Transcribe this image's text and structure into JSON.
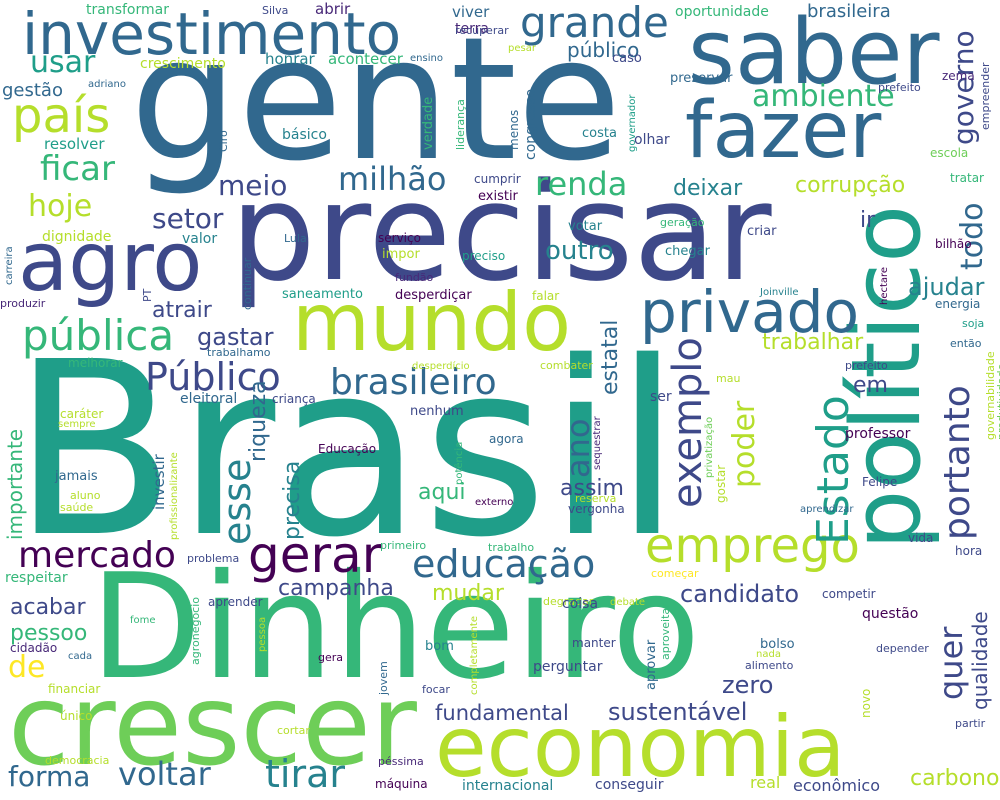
{
  "palette": {
    "background": "#ffffff",
    "yellow": "#fde725",
    "lime": "#b5de2b",
    "green": "#6ece58",
    "teal_green": "#35b779",
    "teal": "#1f9e89",
    "cyan": "#26828e",
    "blue": "#31688e",
    "indigo": "#3e4989",
    "violet": "#482878",
    "purple": "#440154"
  },
  "words": [
    {
      "text": "Brasil",
      "color": "#1f9e89"
    },
    {
      "text": "gente",
      "color": "#31688e"
    },
    {
      "text": "Dinheiro",
      "color": "#35b779"
    },
    {
      "text": "precisar",
      "color": "#3e4989"
    },
    {
      "text": "crescer",
      "color": "#6ece58"
    },
    {
      "text": "economia",
      "color": "#b5de2b"
    },
    {
      "text": "político",
      "color": "#1f9e89"
    },
    {
      "text": "saber",
      "color": "#31688e"
    },
    {
      "text": "fazer",
      "color": "#31688e"
    },
    {
      "text": "mundo",
      "color": "#b5de2b"
    },
    {
      "text": "agro",
      "color": "#3e4989"
    },
    {
      "text": "investimento",
      "color": "#31688e"
    },
    {
      "text": "privado",
      "color": "#31688e"
    },
    {
      "text": "emprego",
      "color": "#b5de2b"
    },
    {
      "text": "gerar",
      "color": "#440154"
    },
    {
      "text": "país",
      "color": "#b5de2b"
    },
    {
      "text": "pública",
      "color": "#35b779"
    },
    {
      "text": "Público",
      "color": "#3e4989"
    },
    {
      "text": "brasileiro",
      "color": "#31688e"
    },
    {
      "text": "educação",
      "color": "#31688e"
    },
    {
      "text": "mercado",
      "color": "#440154"
    },
    {
      "text": "grande",
      "color": "#31688e"
    },
    {
      "text": "Estado",
      "color": "#1f9e89"
    },
    {
      "text": "exemplo",
      "color": "#3e4989"
    },
    {
      "text": "esse",
      "color": "#26828e"
    },
    {
      "text": "portanto",
      "color": "#3e4989"
    },
    {
      "text": "quer",
      "color": "#3e4989"
    },
    {
      "text": "voltar",
      "color": "#31688e"
    },
    {
      "text": "tirar",
      "color": "#26828e"
    },
    {
      "text": "ficar",
      "color": "#35b779"
    },
    {
      "text": "hoje",
      "color": "#b5de2b"
    },
    {
      "text": "renda",
      "color": "#35b779"
    },
    {
      "text": "milhão",
      "color": "#31688e"
    },
    {
      "text": "meio",
      "color": "#3e4989"
    },
    {
      "text": "ambiente",
      "color": "#35b779"
    },
    {
      "text": "usar",
      "color": "#1f9e89"
    },
    {
      "text": "setor",
      "color": "#3e4989"
    },
    {
      "text": "deixar",
      "color": "#26828e"
    },
    {
      "text": "corrupção",
      "color": "#b5de2b"
    },
    {
      "text": "governo",
      "color": "#3e4989"
    },
    {
      "text": "todo",
      "color": "#31688e"
    },
    {
      "text": "ano",
      "color": "#31688e"
    },
    {
      "text": "poder",
      "color": "#b5de2b"
    },
    {
      "text": "forma",
      "color": "#31688e"
    },
    {
      "text": "de",
      "color": "#fde725"
    },
    {
      "text": "ajudar",
      "color": "#26828e"
    },
    {
      "text": "trabalhar",
      "color": "#b5de2b"
    },
    {
      "text": "estatal",
      "color": "#31688e"
    },
    {
      "text": "riqueza",
      "color": "#31688e"
    },
    {
      "text": "precisa",
      "color": "#26828e"
    },
    {
      "text": "outro",
      "color": "#26828e"
    },
    {
      "text": "fundamental",
      "color": "#3e4989"
    },
    {
      "text": "sustentável",
      "color": "#3e4989"
    },
    {
      "text": "candidato",
      "color": "#3e4989"
    },
    {
      "text": "zero",
      "color": "#3e4989"
    },
    {
      "text": "qualidade",
      "color": "#3e4989"
    },
    {
      "text": "carbono",
      "color": "#b5de2b"
    },
    {
      "text": "campanha",
      "color": "#3e4989"
    },
    {
      "text": "mudar",
      "color": "#b5de2b"
    },
    {
      "text": "aqui",
      "color": "#35b779"
    },
    {
      "text": "assim",
      "color": "#3e4989"
    },
    {
      "text": "gastar",
      "color": "#3e4989"
    },
    {
      "text": "atrair",
      "color": "#3e4989"
    },
    {
      "text": "acabar",
      "color": "#3e4989"
    },
    {
      "text": "pessoo",
      "color": "#35b779"
    },
    {
      "text": "gestão",
      "color": "#31688e"
    },
    {
      "text": "brasileira",
      "color": "#31688e"
    },
    {
      "text": "público",
      "color": "#31688e"
    },
    {
      "text": "oportunidade",
      "color": "#35b779"
    },
    {
      "text": "viver",
      "color": "#31688e"
    },
    {
      "text": "abrir",
      "color": "#482878"
    },
    {
      "text": "transformar",
      "color": "#35b779"
    },
    {
      "text": "Silva",
      "color": "#3e4989"
    },
    {
      "text": "terra",
      "color": "#482878"
    },
    {
      "text": "recuperar",
      "color": "#3e4989"
    },
    {
      "text": "crescimento",
      "color": "#b5de2b"
    },
    {
      "text": "honrar",
      "color": "#26828e"
    },
    {
      "text": "acontecer",
      "color": "#35b779"
    },
    {
      "text": "ensino",
      "color": "#31688e"
    },
    {
      "text": "pesar",
      "color": "#b5de2b"
    },
    {
      "text": "caso",
      "color": "#3e4989"
    },
    {
      "text": "preservar",
      "color": "#31688e"
    },
    {
      "text": "zema",
      "color": "#482878"
    },
    {
      "text": "empreender",
      "color": "#3e4989"
    },
    {
      "text": "prefeito",
      "color": "#3e4989"
    },
    {
      "text": "adriano",
      "color": "#31688e"
    },
    {
      "text": "básico",
      "color": "#26828e"
    },
    {
      "text": "resolver",
      "color": "#1f9e89"
    },
    {
      "text": "Ciro",
      "color": "#31688e"
    },
    {
      "text": "verdade",
      "color": "#35b779"
    },
    {
      "text": "liderança",
      "color": "#35b779"
    },
    {
      "text": "menos",
      "color": "#31688e"
    },
    {
      "text": "congresso",
      "color": "#31688e"
    },
    {
      "text": "costa",
      "color": "#26828e"
    },
    {
      "text": "olhar",
      "color": "#3e4989"
    },
    {
      "text": "governador",
      "color": "#1f9e89"
    },
    {
      "text": "escola",
      "color": "#6ece58"
    },
    {
      "text": "tratar",
      "color": "#35b779"
    },
    {
      "text": "cumprir",
      "color": "#3e4989"
    },
    {
      "text": "existir",
      "color": "#440154"
    },
    {
      "text": "dignidade",
      "color": "#b5de2b"
    },
    {
      "text": "valor",
      "color": "#26828e"
    },
    {
      "text": "serviço",
      "color": "#440154"
    },
    {
      "text": "votar",
      "color": "#26828e"
    },
    {
      "text": "geração",
      "color": "#35b779"
    },
    {
      "text": "criar",
      "color": "#3e4989"
    },
    {
      "text": "Lula",
      "color": "#31688e"
    },
    {
      "text": "impor",
      "color": "#b5de2b"
    },
    {
      "text": "preciso",
      "color": "#1f9e89"
    },
    {
      "text": "chegar",
      "color": "#26828e"
    },
    {
      "text": "ir",
      "color": "#3e4989"
    },
    {
      "text": "bilhão",
      "color": "#440154"
    },
    {
      "text": "hectare",
      "color": "#440154"
    },
    {
      "text": "carreira",
      "color": "#31688e"
    },
    {
      "text": "fundão",
      "color": "#482878"
    },
    {
      "text": "produzir",
      "color": "#482878"
    },
    {
      "text": "PT",
      "color": "#3e4989"
    },
    {
      "text": "continuar",
      "color": "#31688e"
    },
    {
      "text": "saneamento",
      "color": "#1f9e89"
    },
    {
      "text": "desperdiçar",
      "color": "#440154"
    },
    {
      "text": "falar",
      "color": "#b5de2b"
    },
    {
      "text": "Joinville",
      "color": "#26828e"
    },
    {
      "text": "energia",
      "color": "#31688e"
    },
    {
      "text": "soja",
      "color": "#1f9e89"
    },
    {
      "text": "trabalhamo",
      "color": "#31688e"
    },
    {
      "text": "então",
      "color": "#31688e"
    },
    {
      "text": "melhorar",
      "color": "#35b779"
    },
    {
      "text": "desperdício",
      "color": "#b5de2b"
    },
    {
      "text": "combater",
      "color": "#b5de2b"
    },
    {
      "text": "prefeito",
      "color": "#3e4989"
    },
    {
      "text": "mau",
      "color": "#b5de2b"
    },
    {
      "text": "em",
      "color": "#3e4989"
    },
    {
      "text": "eleitoral",
      "color": "#31688e"
    },
    {
      "text": "criança",
      "color": "#3e4989"
    },
    {
      "text": "caráter",
      "color": "#b5de2b"
    },
    {
      "text": "sempre",
      "color": "#b5de2b"
    },
    {
      "text": "nenhum",
      "color": "#3e4989"
    },
    {
      "text": "ser",
      "color": "#3e4989"
    },
    {
      "text": "produtividade",
      "color": "#6ece58"
    },
    {
      "text": "governabilidade",
      "color": "#b5de2b"
    },
    {
      "text": "professor",
      "color": "#440154"
    },
    {
      "text": "importante",
      "color": "#35b779"
    },
    {
      "text": "potência",
      "color": "#35b779"
    },
    {
      "text": "Educação",
      "color": "#440154"
    },
    {
      "text": "sequestrar",
      "color": "#482878"
    },
    {
      "text": "agora",
      "color": "#31688e"
    },
    {
      "text": "privatização",
      "color": "#6ece58"
    },
    {
      "text": "jamais",
      "color": "#31688e"
    },
    {
      "text": "investir",
      "color": "#31688e"
    },
    {
      "text": "reserva",
      "color": "#b5de2b"
    },
    {
      "text": "gostar",
      "color": "#b5de2b"
    },
    {
      "text": "Felipe",
      "color": "#3e4989"
    },
    {
      "text": "aluno",
      "color": "#b5de2b"
    },
    {
      "text": "saúde",
      "color": "#b5de2b"
    },
    {
      "text": "profissionalizante",
      "color": "#b5de2b"
    },
    {
      "text": "externo",
      "color": "#440154"
    },
    {
      "text": "vergonha",
      "color": "#3e4989"
    },
    {
      "text": "aprendizar",
      "color": "#31688e"
    },
    {
      "text": "primeiro",
      "color": "#35b779"
    },
    {
      "text": "trabalho",
      "color": "#35b779"
    },
    {
      "text": "vida",
      "color": "#3e4989"
    },
    {
      "text": "hora",
      "color": "#3e4989"
    },
    {
      "text": "problema",
      "color": "#3e4989"
    },
    {
      "text": "respeitar",
      "color": "#35b779"
    },
    {
      "text": "começar",
      "color": "#fde725"
    },
    {
      "text": "competir",
      "color": "#3e4989"
    },
    {
      "text": "agronegócio",
      "color": "#35b779"
    },
    {
      "text": "aprender",
      "color": "#3e4989"
    },
    {
      "text": "degradar",
      "color": "#b5de2b"
    },
    {
      "text": "debate",
      "color": "#b5de2b"
    },
    {
      "text": "coisa",
      "color": "#3e4989"
    },
    {
      "text": "questão",
      "color": "#440154"
    },
    {
      "text": "fome",
      "color": "#35b779"
    },
    {
      "text": "pessoa",
      "color": "#b5de2b"
    },
    {
      "text": "cidadão",
      "color": "#482878"
    },
    {
      "text": "cada",
      "color": "#31688e"
    },
    {
      "text": "manter",
      "color": "#3e4989"
    },
    {
      "text": "aproveitar",
      "color": "#35b779"
    },
    {
      "text": "nada",
      "color": "#b5de2b"
    },
    {
      "text": "bolso",
      "color": "#31688e"
    },
    {
      "text": "alimento",
      "color": "#3e4989"
    },
    {
      "text": "depender",
      "color": "#3e4989"
    },
    {
      "text": "completamente",
      "color": "#b5de2b"
    },
    {
      "text": "aprovar",
      "color": "#31688e"
    },
    {
      "text": "bom",
      "color": "#26828e"
    },
    {
      "text": "perguntar",
      "color": "#3e4989"
    },
    {
      "text": "gera",
      "color": "#440154"
    },
    {
      "text": "jovem",
      "color": "#31688e"
    },
    {
      "text": "focar",
      "color": "#3e4989"
    },
    {
      "text": "financiar",
      "color": "#b5de2b"
    },
    {
      "text": "único",
      "color": "#b5de2b"
    },
    {
      "text": "novo",
      "color": "#b5de2b"
    },
    {
      "text": "cortar",
      "color": "#b5de2b"
    },
    {
      "text": "partir",
      "color": "#3e4989"
    },
    {
      "text": "democracia",
      "color": "#b5de2b"
    },
    {
      "text": "péssima",
      "color": "#482878"
    },
    {
      "text": "máquina",
      "color": "#440154"
    },
    {
      "text": "internacional",
      "color": "#26828e"
    },
    {
      "text": "conseguir",
      "color": "#3e4989"
    },
    {
      "text": "real",
      "color": "#b5de2b"
    },
    {
      "text": "econômico",
      "color": "#3e4989"
    }
  ]
}
